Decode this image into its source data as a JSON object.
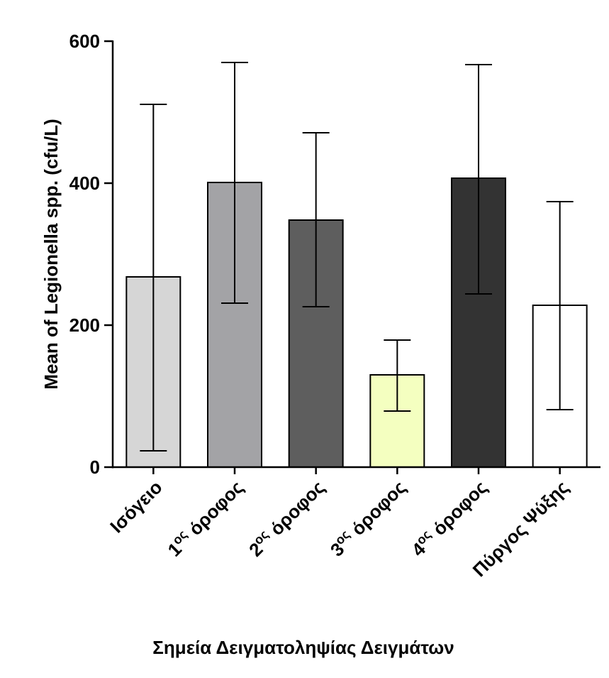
{
  "chart_data": {
    "type": "bar",
    "title": "",
    "xlabel": "Σημεία Δειγματοληψίας Δειγμάτων",
    "ylabel": "Mean of Legionella spp. (cfu/L)",
    "ylim": [
      0,
      600
    ],
    "yticks": [
      {
        "value": 0,
        "label": "0"
      },
      {
        "value": 200,
        "label": "200"
      },
      {
        "value": 400,
        "label": "400"
      },
      {
        "value": 600,
        "label": "600"
      }
    ],
    "grid": false,
    "categories": [
      {
        "base": "Ισόγειο",
        "sup": "",
        "rest": ""
      },
      {
        "base": "1",
        "sup": "ος",
        "rest": " όροφος"
      },
      {
        "base": "2",
        "sup": "ος",
        "rest": " όροφος"
      },
      {
        "base": "3",
        "sup": "ος",
        "rest": " όροφος"
      },
      {
        "base": "4",
        "sup": "ος",
        "rest": " όροφος"
      },
      {
        "base": "Πύργος Ψύξης",
        "sup": "",
        "rest": ""
      }
    ],
    "values": [
      268,
      401,
      348,
      130,
      407,
      228
    ],
    "error_low": [
      23,
      231,
      226,
      79,
      244,
      81
    ],
    "error_high": [
      511,
      570,
      471,
      179,
      567,
      374
    ],
    "colors": [
      "#d6d6d6",
      "#a3a3a6",
      "#5e5e5e",
      "#f4ffc0",
      "#333333",
      "#ffffff"
    ]
  }
}
